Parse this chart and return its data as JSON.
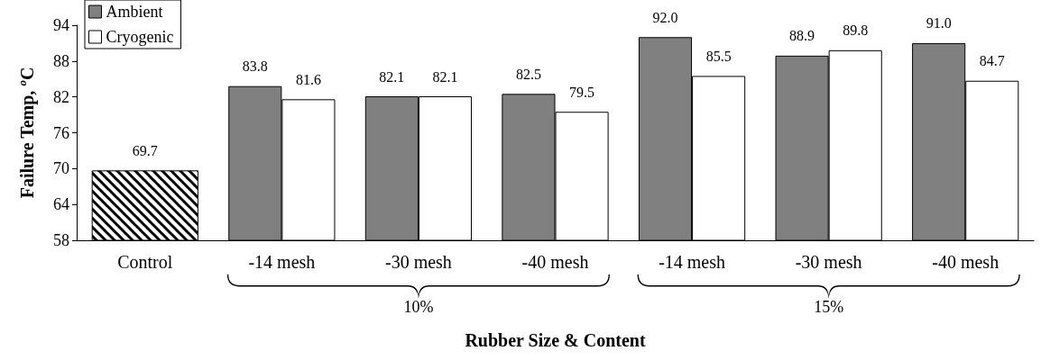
{
  "chart_data": {
    "type": "bar",
    "xlabel": "Rubber Size & Content",
    "ylabel": "Failure Temp, $^{o}$C",
    "categories": [
      "Control",
      "-14 mesh",
      "-30 mesh",
      "-40 mesh",
      "-14 mesh",
      "-30 mesh",
      "-40 mesh"
    ],
    "series": [
      {
        "color": "#000000",
        "values": [
          69.7,
          null,
          null,
          null,
          null,
          null,
          null
        ],
        "value_labels": [
          "69.7",
          null,
          null,
          null,
          null,
          null,
          null
        ]
      },
      {
        "name": "Ambient",
        "color": "#808080",
        "values": [
          null,
          83.8,
          82.1,
          82.5,
          92.0,
          88.9,
          91.0
        ],
        "value_labels": [
          null,
          "83.8",
          "82.1",
          "82.5",
          "92.0",
          "88.9",
          "91.0"
        ]
      },
      {
        "name": "Cryogenic",
        "color": "#ffffff",
        "values": [
          null,
          81.6,
          82.1,
          79.5,
          85.5,
          89.8,
          84.7
        ],
        "value_labels": [
          null,
          "81.6",
          "82.1",
          "79.5",
          "85.5",
          "89.8",
          "84.7"
        ]
      }
    ],
    "ylim": [
      58,
      94
    ],
    "yticks": [
      58,
      64,
      70,
      76,
      82,
      88,
      94
    ],
    "grid": false,
    "legend": "top left",
    "annotations": [
      "10%",
      "15%"
    ]
  }
}
